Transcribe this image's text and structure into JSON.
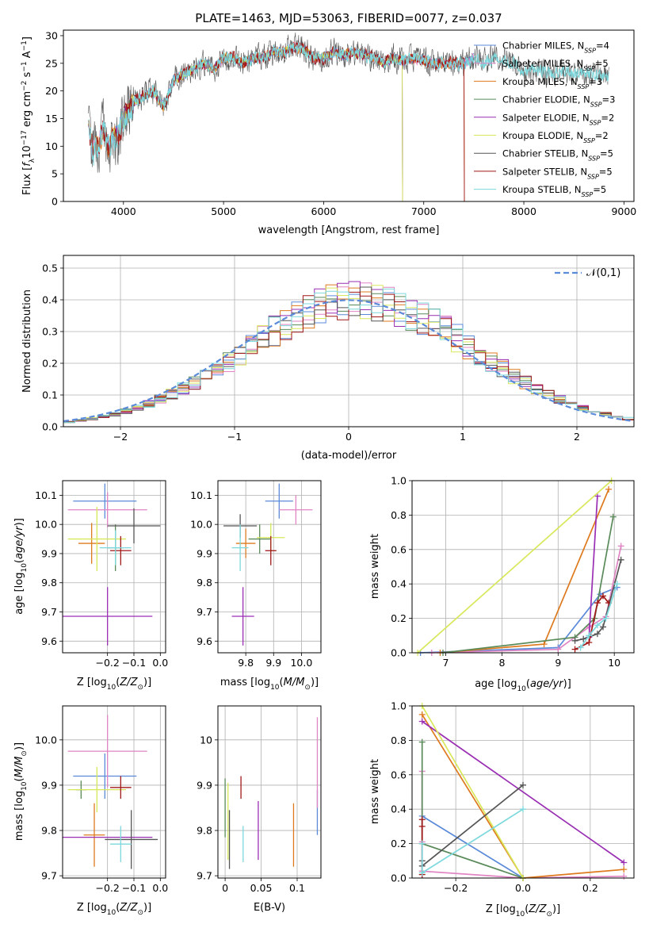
{
  "colors": {
    "chabrier_miles": "#5b8ad9",
    "salpeter_miles": "#e084c4",
    "kroupa_miles": "#de7a1e",
    "chabrier_elodie": "#5a8a5a",
    "salpeter_elodie": "#9a2fb3",
    "kroupa_elodie": "#d8e85a",
    "chabrier_stelib": "#555555",
    "salpeter_stelib": "#a01818",
    "kroupa_stelib": "#7cd8dc"
  },
  "chart_data": [
    {
      "type": "line",
      "title": "PLATE=1463, MJD=53063, FIBERID=0077, z=0.037",
      "xlabel": "wavelength [Angstrom, rest frame]",
      "ylabel": "Flux [f_λ10^-17 erg cm^-2 s^-1 A^-1]",
      "xlim": [
        3400,
        9100
      ],
      "ylim": [
        0,
        31
      ],
      "xticks": [
        4000,
        5000,
        6000,
        7000,
        8000,
        9000
      ],
      "yticks": [
        0,
        5,
        10,
        15,
        20,
        25,
        30
      ],
      "grid": false,
      "legend": "right",
      "data_range": [
        3650,
        8850
      ],
      "anchors": {
        "x": [
          3650,
          3700,
          3750,
          3800,
          3850,
          3900,
          3950,
          4000,
          4100,
          4200,
          4300,
          4400,
          4500,
          4600,
          4700,
          4800,
          4900,
          5000,
          5100,
          5200,
          5300,
          5400,
          5500,
          5600,
          5700,
          5800,
          5900,
          6000,
          6100,
          6200,
          6300,
          6400,
          6500,
          6600,
          6700,
          6800,
          6900,
          7000,
          7100,
          7200,
          7300,
          7400,
          7500,
          7600,
          7700,
          7800,
          7900,
          8000,
          8100,
          8200,
          8300,
          8400,
          8500,
          8600,
          8700,
          8850
        ],
        "y": [
          13,
          9,
          10,
          13,
          10,
          12,
          12,
          15,
          18,
          19,
          20,
          17,
          22,
          23,
          24,
          25,
          24,
          26,
          26,
          25,
          26,
          26,
          27,
          27,
          28,
          27.5,
          26,
          26,
          27,
          26.5,
          27,
          26.5,
          26,
          25,
          26,
          25.5,
          26,
          25.5,
          25,
          25,
          25,
          25,
          26,
          25,
          26,
          25.5,
          25,
          23.5,
          24,
          23.5,
          23,
          23.5,
          23,
          23.5,
          23,
          22.5
        ]
      },
      "series": [
        {
          "name": "Chabrier MILES, N_SSP=4",
          "noise": 0.8,
          "range": [
            3650,
            7500
          ]
        },
        {
          "name": "Salpeter MILES, N_SSP=5",
          "noise": 0.8,
          "range": [
            3650,
            7500
          ]
        },
        {
          "name": "Kroupa MILES, N_SSP=3",
          "noise": 0.8,
          "range": [
            3650,
            7410
          ]
        },
        {
          "name": "Chabrier ELODIE, N_SSP=3",
          "noise": 0.6,
          "range": [
            3900,
            6790
          ]
        },
        {
          "name": "Salpeter ELODIE, N_SSP=2",
          "noise": 0.6,
          "range": [
            3900,
            6790
          ]
        },
        {
          "name": "Kroupa ELODIE, N_SSP=2",
          "noise": 0.6,
          "range": [
            3900,
            6790
          ]
        },
        {
          "name": "Chabrier STELIB, N_SSP=5",
          "noise": 2.2,
          "range": [
            3650,
            8850
          ]
        },
        {
          "name": "Salpeter STELIB, N_SSP=5",
          "noise": 1.0,
          "range": [
            3650,
            7410
          ]
        },
        {
          "name": "Kroupa STELIB, N_SSP=5",
          "noise": 1.0,
          "range": [
            3650,
            8850
          ]
        }
      ]
    },
    {
      "type": "bar",
      "xlabel": "(data-model)/error",
      "ylabel": "Normed distribution",
      "xlim": [
        -2.5,
        2.5
      ],
      "ylim": [
        0,
        0.54
      ],
      "xticks": [
        -2,
        -1,
        0,
        1,
        2
      ],
      "yticks": [
        0.0,
        0.1,
        0.2,
        0.3,
        0.4,
        0.5
      ],
      "grid": true,
      "legend": "top-right",
      "legend_label": "𝒩(0,1)",
      "bin_width": 0.1,
      "reference_curve": "normal(0,1)"
    },
    {
      "type": "scatter",
      "xlabel": "Z [log10(Z/Z☉)]",
      "ylabel": "age [log10(age/yr)]",
      "xlim": [
        -0.37,
        0.02
      ],
      "ylim": [
        9.56,
        10.15
      ],
      "xticks": [
        -0.2,
        -0.1,
        0.0
      ],
      "yticks": [
        9.6,
        9.7,
        9.8,
        9.9,
        10.0,
        10.1
      ],
      "grid": true,
      "points": [
        {
          "x": -0.21,
          "y": 10.08,
          "xerr": 0.12,
          "yerr": 0.06
        },
        {
          "x": -0.2,
          "y": 10.05,
          "xerr": 0.15,
          "yerr": 0.06
        },
        {
          "x": -0.26,
          "y": 9.935,
          "xerr": 0.05,
          "yerr": 0.07
        },
        {
          "x": -0.17,
          "y": 9.92,
          "xerr": 0.03,
          "yerr": 0.08
        },
        {
          "x": -0.2,
          "y": 9.685,
          "xerr": 0.17,
          "yerr": 0.1
        },
        {
          "x": -0.24,
          "y": 9.95,
          "xerr": 0.11,
          "yerr": 0.11
        },
        {
          "x": -0.1,
          "y": 9.995,
          "xerr": 0.1,
          "yerr": 0.06
        },
        {
          "x": -0.15,
          "y": 9.91,
          "xerr": 0.04,
          "yerr": 0.05
        },
        {
          "x": -0.17,
          "y": 9.92,
          "xerr": 0.06,
          "yerr": 0.06
        }
      ]
    },
    {
      "type": "scatter",
      "xlabel": "mass [log10(M/M☉)]",
      "xlim": [
        9.7,
        10.07
      ],
      "ylim": [
        9.56,
        10.15
      ],
      "xticks": [
        9.8,
        9.9,
        10.0
      ],
      "yticks": [
        9.6,
        9.7,
        9.8,
        9.9,
        10.0,
        10.1
      ],
      "grid": true,
      "points": [
        {
          "x": 9.92,
          "y": 10.08,
          "xerr": 0.05,
          "yerr": 0.06
        },
        {
          "x": 9.98,
          "y": 10.05,
          "xerr": 0.06,
          "yerr": 0.05
        },
        {
          "x": 9.8,
          "y": 9.935,
          "xerr": 0.035,
          "yerr": 0.05
        },
        {
          "x": 9.85,
          "y": 9.95,
          "xerr": 0.04,
          "yerr": 0.05
        },
        {
          "x": 9.79,
          "y": 9.685,
          "xerr": 0.04,
          "yerr": 0.1
        },
        {
          "x": 9.89,
          "y": 9.955,
          "xerr": 0.05,
          "yerr": 0.05
        },
        {
          "x": 9.78,
          "y": 9.995,
          "xerr": 0.06,
          "yerr": 0.04
        },
        {
          "x": 9.89,
          "y": 9.91,
          "xerr": 0.02,
          "yerr": 0.05
        },
        {
          "x": 9.78,
          "y": 9.92,
          "xerr": 0.03,
          "yerr": 0.08
        }
      ]
    },
    {
      "type": "line",
      "xlabel": "age [log10(age/yr)]",
      "ylabel": "mass weight",
      "xlim": [
        6.4,
        10.35
      ],
      "ylim": [
        0,
        1
      ],
      "xticks": [
        7,
        8,
        9,
        10
      ],
      "yticks": [
        0.0,
        0.2,
        0.4,
        0.6,
        0.8,
        1.0
      ],
      "grid": true,
      "series": [
        {
          "x": [
            6.55,
            9.0,
            9.75,
            10.05
          ],
          "y": [
            0.0,
            0.03,
            0.34,
            0.38
          ]
        },
        {
          "x": [
            6.75,
            9.0,
            9.55,
            9.85,
            10.12
          ],
          "y": [
            0.0,
            0.02,
            0.15,
            0.21,
            0.62
          ]
        },
        {
          "x": [
            6.9,
            8.75,
            9.9
          ],
          "y": [
            0.0,
            0.05,
            0.95
          ]
        },
        {
          "x": [
            6.95,
            9.3,
            9.65,
            9.98
          ],
          "y": [
            0.0,
            0.09,
            0.2,
            0.79
          ]
        },
        {
          "x": [
            9.55,
            9.7
          ],
          "y": [
            0.09,
            0.91
          ]
        },
        {
          "x": [
            6.5,
            9.95
          ],
          "y": [
            0.0,
            1.0
          ]
        },
        {
          "x": [
            9.3,
            9.45,
            9.7,
            9.8,
            10.12
          ],
          "y": [
            0.07,
            0.08,
            0.11,
            0.15,
            0.54
          ]
        },
        {
          "x": [
            9.3,
            9.55,
            9.7,
            9.8,
            9.9
          ],
          "y": [
            0.02,
            0.06,
            0.29,
            0.33,
            0.29
          ]
        },
        {
          "x": [
            9.4,
            9.55,
            9.7,
            9.85,
            10.05
          ],
          "y": [
            0.03,
            0.1,
            0.16,
            0.2,
            0.4
          ]
        }
      ]
    },
    {
      "type": "scatter",
      "xlabel": "Z [log10(Z/Z☉)]",
      "ylabel": "mass [log10(M/M☉)]",
      "xlim": [
        -0.37,
        0.02
      ],
      "ylim": [
        9.695,
        10.075
      ],
      "xticks": [
        -0.2,
        -0.1,
        0.0
      ],
      "yticks": [
        9.7,
        9.8,
        9.9,
        10.0
      ],
      "grid": true,
      "points": [
        {
          "x": -0.21,
          "y": 9.92,
          "xerr": 0.12,
          "yerr": 0.05
        },
        {
          "x": -0.2,
          "y": 9.975,
          "xerr": 0.15,
          "yerr": 0.08
        },
        {
          "x": -0.25,
          "y": 9.79,
          "xerr": 0.04,
          "yerr": 0.07
        },
        {
          "x": -0.3,
          "y": 9.89,
          "xerr": 0.02,
          "yerr": 0.02
        },
        {
          "x": -0.2,
          "y": 9.785,
          "xerr": 0.17,
          "yerr": 0.0
        },
        {
          "x": -0.24,
          "y": 9.89,
          "xerr": 0.11,
          "yerr": 0.05
        },
        {
          "x": -0.11,
          "y": 9.78,
          "xerr": 0.1,
          "yerr": 0.065
        },
        {
          "x": -0.15,
          "y": 9.895,
          "xerr": 0.04,
          "yerr": 0.025
        },
        {
          "x": -0.15,
          "y": 9.77,
          "xerr": 0.04,
          "yerr": 0.04
        }
      ]
    },
    {
      "type": "scatter",
      "xlabel": "E(B-V)",
      "xlim": [
        -0.01,
        0.133
      ],
      "ylim": [
        9.695,
        10.075
      ],
      "xticks": [
        0.0,
        0.05,
        0.1
      ],
      "yticks": [
        9.7,
        9.8,
        9.9,
        10.0
      ],
      "grid": true,
      "points": [
        {
          "x": 0.128,
          "y": 9.84,
          "xerr": 0,
          "yerr": 0.05
        },
        {
          "x": 0.128,
          "y": 9.95,
          "xerr": 0,
          "yerr": 0.1
        },
        {
          "x": 0.095,
          "y": 9.79,
          "xerr": 0,
          "yerr": 0.07
        },
        {
          "x": 0.0,
          "y": 9.85,
          "xerr": 0,
          "yerr": 0.065
        },
        {
          "x": 0.046,
          "y": 9.8,
          "xerr": 0,
          "yerr": 0.065
        },
        {
          "x": 0.004,
          "y": 9.82,
          "xerr": 0,
          "yerr": 0.085
        },
        {
          "x": 0.006,
          "y": 9.78,
          "xerr": 0,
          "yerr": 0.065
        },
        {
          "x": 0.022,
          "y": 9.895,
          "xerr": 0,
          "yerr": 0.025
        },
        {
          "x": 0.025,
          "y": 9.77,
          "xerr": 0,
          "yerr": 0.04
        }
      ]
    },
    {
      "type": "line",
      "xlabel": "Z [log10(Z/Z☉)]",
      "ylabel": "mass weight",
      "xlim": [
        -0.33,
        0.33
      ],
      "ylim": [
        0,
        1
      ],
      "xticks": [
        -0.2,
        0.0,
        0.2
      ],
      "yticks": [
        0.0,
        0.2,
        0.4,
        0.6,
        0.8,
        1.0
      ],
      "grid": true,
      "series": [
        {
          "x": [
            -0.3,
            0.0
          ],
          "y": [
            0.36,
            0.0
          ]
        },
        {
          "x": [
            -0.3,
            -0.3,
            -0.3,
            0.0,
            0.3
          ],
          "y": [
            0.62,
            0.21,
            0.04,
            0.0,
            0.01
          ]
        },
        {
          "x": [
            -0.3,
            0.0,
            0.3
          ],
          "y": [
            0.95,
            0.0,
            0.05
          ]
        },
        {
          "x": [
            -0.3,
            -0.3,
            0.0
          ],
          "y": [
            0.79,
            0.2,
            0.0
          ]
        },
        {
          "x": [
            -0.3,
            0.3
          ],
          "y": [
            0.91,
            0.09
          ]
        },
        {
          "x": [
            -0.3,
            0.0
          ],
          "y": [
            1.0,
            0.0
          ]
        },
        {
          "x": [
            -0.3,
            -0.3,
            0.0
          ],
          "y": [
            0.1,
            0.07,
            0.54
          ]
        },
        {
          "x": [
            -0.3,
            -0.3,
            -0.3
          ],
          "y": [
            0.34,
            0.02,
            0.3
          ]
        },
        {
          "x": [
            -0.3,
            -0.3,
            0.0
          ],
          "y": [
            0.2,
            0.03,
            0.4
          ]
        }
      ]
    }
  ]
}
